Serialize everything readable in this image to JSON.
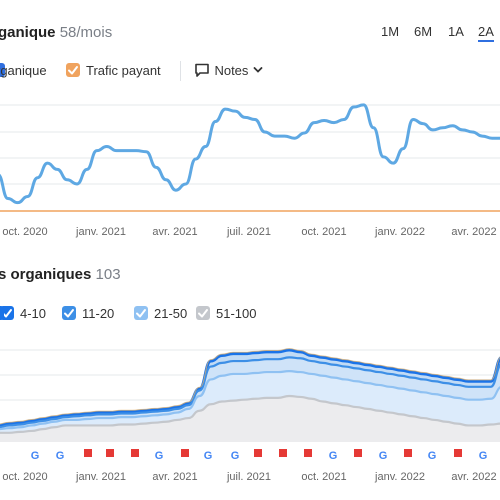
{
  "header": {
    "title": "ganique",
    "metric": "58/mois",
    "ranges": [
      "1M",
      "6M",
      "1A",
      "2A"
    ],
    "active_range": "2A"
  },
  "legend1": {
    "organic_label": "rganique",
    "paid_label": "Trafic payant",
    "notes_label": "Notes"
  },
  "section2": {
    "title": "s organiques",
    "count": "103"
  },
  "legend2": {
    "items": [
      {
        "label": "4-10",
        "color": "#1a73e8"
      },
      {
        "label": "11-20",
        "color": "#3d8fe6"
      },
      {
        "label": "21-50",
        "color": "#8fc1f2"
      },
      {
        "label": "51-100",
        "color": "#c4c7cc"
      }
    ]
  },
  "colors": {
    "organic_line": "#5ea8e3",
    "paid_line": "#f0a35e",
    "accent": "#2f6fe0",
    "note_flag": "#e53935"
  },
  "chart_data": [
    {
      "type": "line",
      "x_tick_labels": [
        "oct. 2020",
        "janv. 2021",
        "avr. 2021",
        "juil. 2021",
        "oct. 2021",
        "janv. 2022",
        "avr. 2022"
      ],
      "series": [
        {
          "name": "Trafic organique",
          "color": "#5ea8e3",
          "values": [
            35,
            12,
            8,
            14,
            32,
            46,
            40,
            30,
            26,
            40,
            58,
            62,
            58,
            58,
            58,
            57,
            42,
            30,
            20,
            26,
            50,
            62,
            86,
            98,
            96,
            90,
            88,
            76,
            72,
            72,
            70,
            75,
            85,
            87,
            85,
            88,
            100,
            102,
            80,
            52,
            46,
            60,
            88,
            84,
            78,
            80,
            82,
            78,
            76,
            72,
            70,
            70
          ]
        },
        {
          "name": "Trafic payant",
          "color": "#f0a35e",
          "values": [
            0,
            0,
            0,
            0,
            0,
            0,
            0,
            0,
            0,
            0,
            0,
            0,
            0,
            0,
            0,
            0,
            0,
            0,
            0,
            0,
            0,
            0,
            0,
            0,
            0,
            0,
            0,
            0,
            0,
            0,
            0,
            0,
            0,
            0,
            0,
            0,
            0,
            0,
            0,
            0,
            0,
            0,
            0,
            0,
            0,
            0,
            0,
            0,
            0,
            0,
            0,
            0
          ]
        }
      ]
    },
    {
      "type": "area",
      "x_tick_labels": [
        "oct. 2020",
        "janv. 2021",
        "avr. 2021",
        "juil. 2021",
        "oct. 2021",
        "janv. 2022",
        "avr. 2022"
      ],
      "series": [
        {
          "name": "51-100",
          "color": "#c4c7cc",
          "values": [
            10,
            10,
            11,
            12,
            14,
            16,
            18,
            18,
            18,
            18,
            18,
            19,
            19,
            20,
            21,
            22,
            24,
            26,
            34,
            41,
            44,
            45,
            46,
            47,
            48,
            48,
            50,
            49,
            47,
            44,
            42,
            40,
            38,
            36,
            34,
            32,
            30,
            28,
            26,
            24,
            22,
            20,
            18,
            18,
            19,
            20
          ]
        },
        {
          "name": "21-50",
          "color": "#8fc1f2",
          "values": [
            14,
            15,
            16,
            18,
            20,
            22,
            24,
            24,
            25,
            26,
            26,
            27,
            27,
            28,
            29,
            30,
            32,
            36,
            50,
            68,
            72,
            74,
            74,
            75,
            76,
            76,
            77,
            76,
            74,
            72,
            70,
            68,
            66,
            64,
            62,
            60,
            58,
            56,
            54,
            52,
            50,
            48,
            46,
            46,
            47,
            60
          ]
        },
        {
          "name": "11-20",
          "color": "#3d8fe6",
          "values": [
            16,
            18,
            19,
            21,
            23,
            25,
            27,
            28,
            29,
            30,
            30,
            31,
            31,
            32,
            33,
            34,
            36,
            40,
            56,
            82,
            86,
            88,
            88,
            89,
            90,
            90,
            92,
            91,
            88,
            86,
            84,
            82,
            80,
            78,
            76,
            74,
            72,
            70,
            68,
            66,
            64,
            62,
            60,
            60,
            60,
            85
          ]
        },
        {
          "name": "4-10",
          "color": "#1a73e8",
          "values": [
            18,
            20,
            21,
            23,
            25,
            27,
            29,
            30,
            31,
            32,
            32,
            33,
            33,
            34,
            35,
            36,
            38,
            42,
            58,
            88,
            94,
            96,
            96,
            97,
            98,
            98,
            100,
            98,
            94,
            92,
            90,
            88,
            86,
            84,
            82,
            80,
            78,
            76,
            74,
            72,
            70,
            68,
            66,
            66,
            66,
            92
          ]
        }
      ]
    }
  ]
}
